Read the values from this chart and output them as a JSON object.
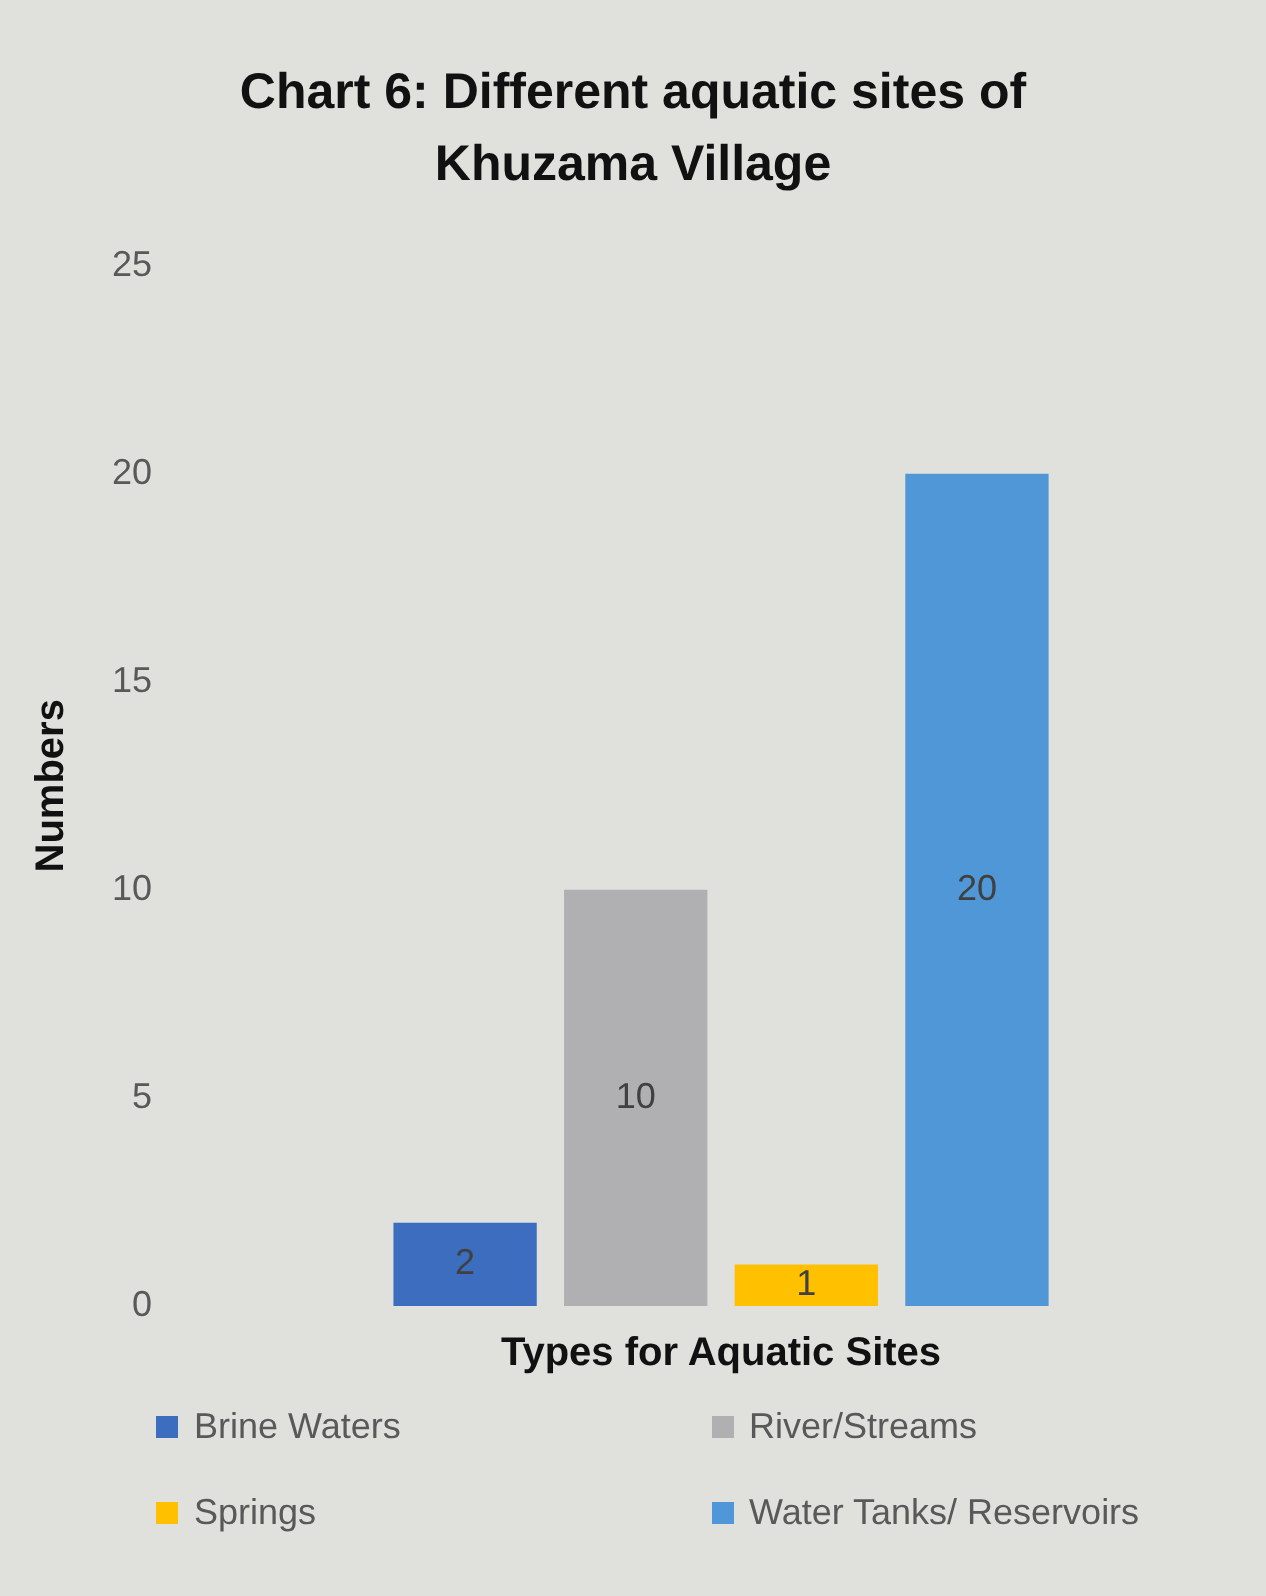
{
  "chart_data": {
    "type": "bar",
    "title": "Chart 6: Different aquatic sites of Khuzama Village",
    "xlabel": "Types for Aquatic Sites",
    "ylabel": "Numbers",
    "categories": [
      null
    ],
    "series": [
      {
        "name": "Brine Waters",
        "color": "#3c6dbe",
        "values": [
          2
        ]
      },
      {
        "name": "River/Streams",
        "color": "#b0b0b3",
        "values": [
          10
        ]
      },
      {
        "name": "Springs",
        "color": "#ffc000",
        "values": [
          1
        ]
      },
      {
        "name": "Water Tanks/ Reservoirs",
        "color": "#4f97d6",
        "values": [
          20
        ]
      }
    ],
    "ylim": [
      0,
      25
    ],
    "yticks": [
      0,
      5,
      10,
      15,
      20,
      25
    ],
    "grid": false,
    "legend": "bottom",
    "tick_labels": "y",
    "data_labels": true
  }
}
